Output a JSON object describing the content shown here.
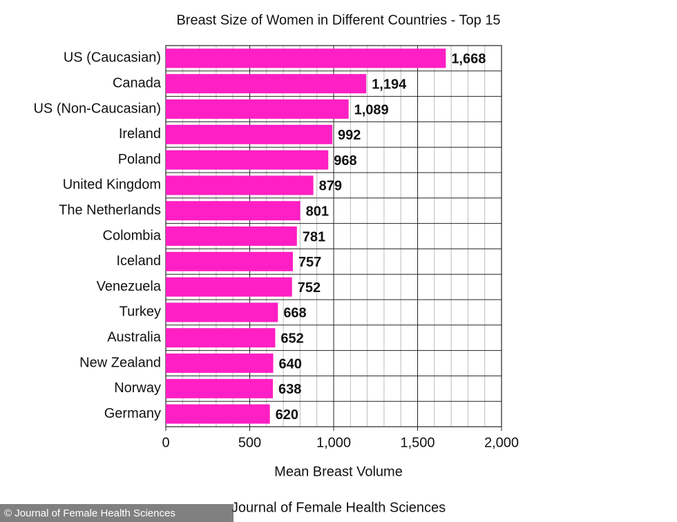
{
  "chart_data": {
    "type": "hbar",
    "title": "Breast Size of Women in Different Countries - Top 15",
    "categories": [
      "US (Caucasian)",
      "Canada",
      "US (Non-Caucasian)",
      "Ireland",
      "Poland",
      "United Kingdom",
      "The Netherlands",
      "Colombia",
      "Iceland",
      "Venezuela",
      "Turkey",
      "Australia",
      "New Zealand",
      "Norway",
      "Germany"
    ],
    "values": [
      1668,
      1194,
      1089,
      992,
      968,
      879,
      801,
      781,
      757,
      752,
      668,
      652,
      640,
      638,
      620
    ],
    "value_labels": [
      "1,668",
      "1,194",
      "1,089",
      "992",
      "968",
      "879",
      "801",
      "781",
      "757",
      "752",
      "668",
      "652",
      "640",
      "638",
      "620"
    ],
    "color": "#ff1fc4",
    "xlim": [
      0,
      2000
    ],
    "xticks": [
      0,
      500,
      {
        "value": 1000,
        "label": "1,000"
      },
      {
        "value": 1500,
        "label": "1,500"
      },
      {
        "value": 2000,
        "label": "2,000"
      }
    ],
    "minor_grid": [
      100,
      200,
      300,
      400,
      600,
      700,
      800,
      900,
      1100,
      1200,
      1300,
      1400,
      1600,
      1700,
      1800,
      1900
    ],
    "grid": true,
    "x_label": "Mean Breast Volume",
    "source": "Journal of Female Health Sciences",
    "watermark": "© Journal of Female Health Sciences"
  }
}
